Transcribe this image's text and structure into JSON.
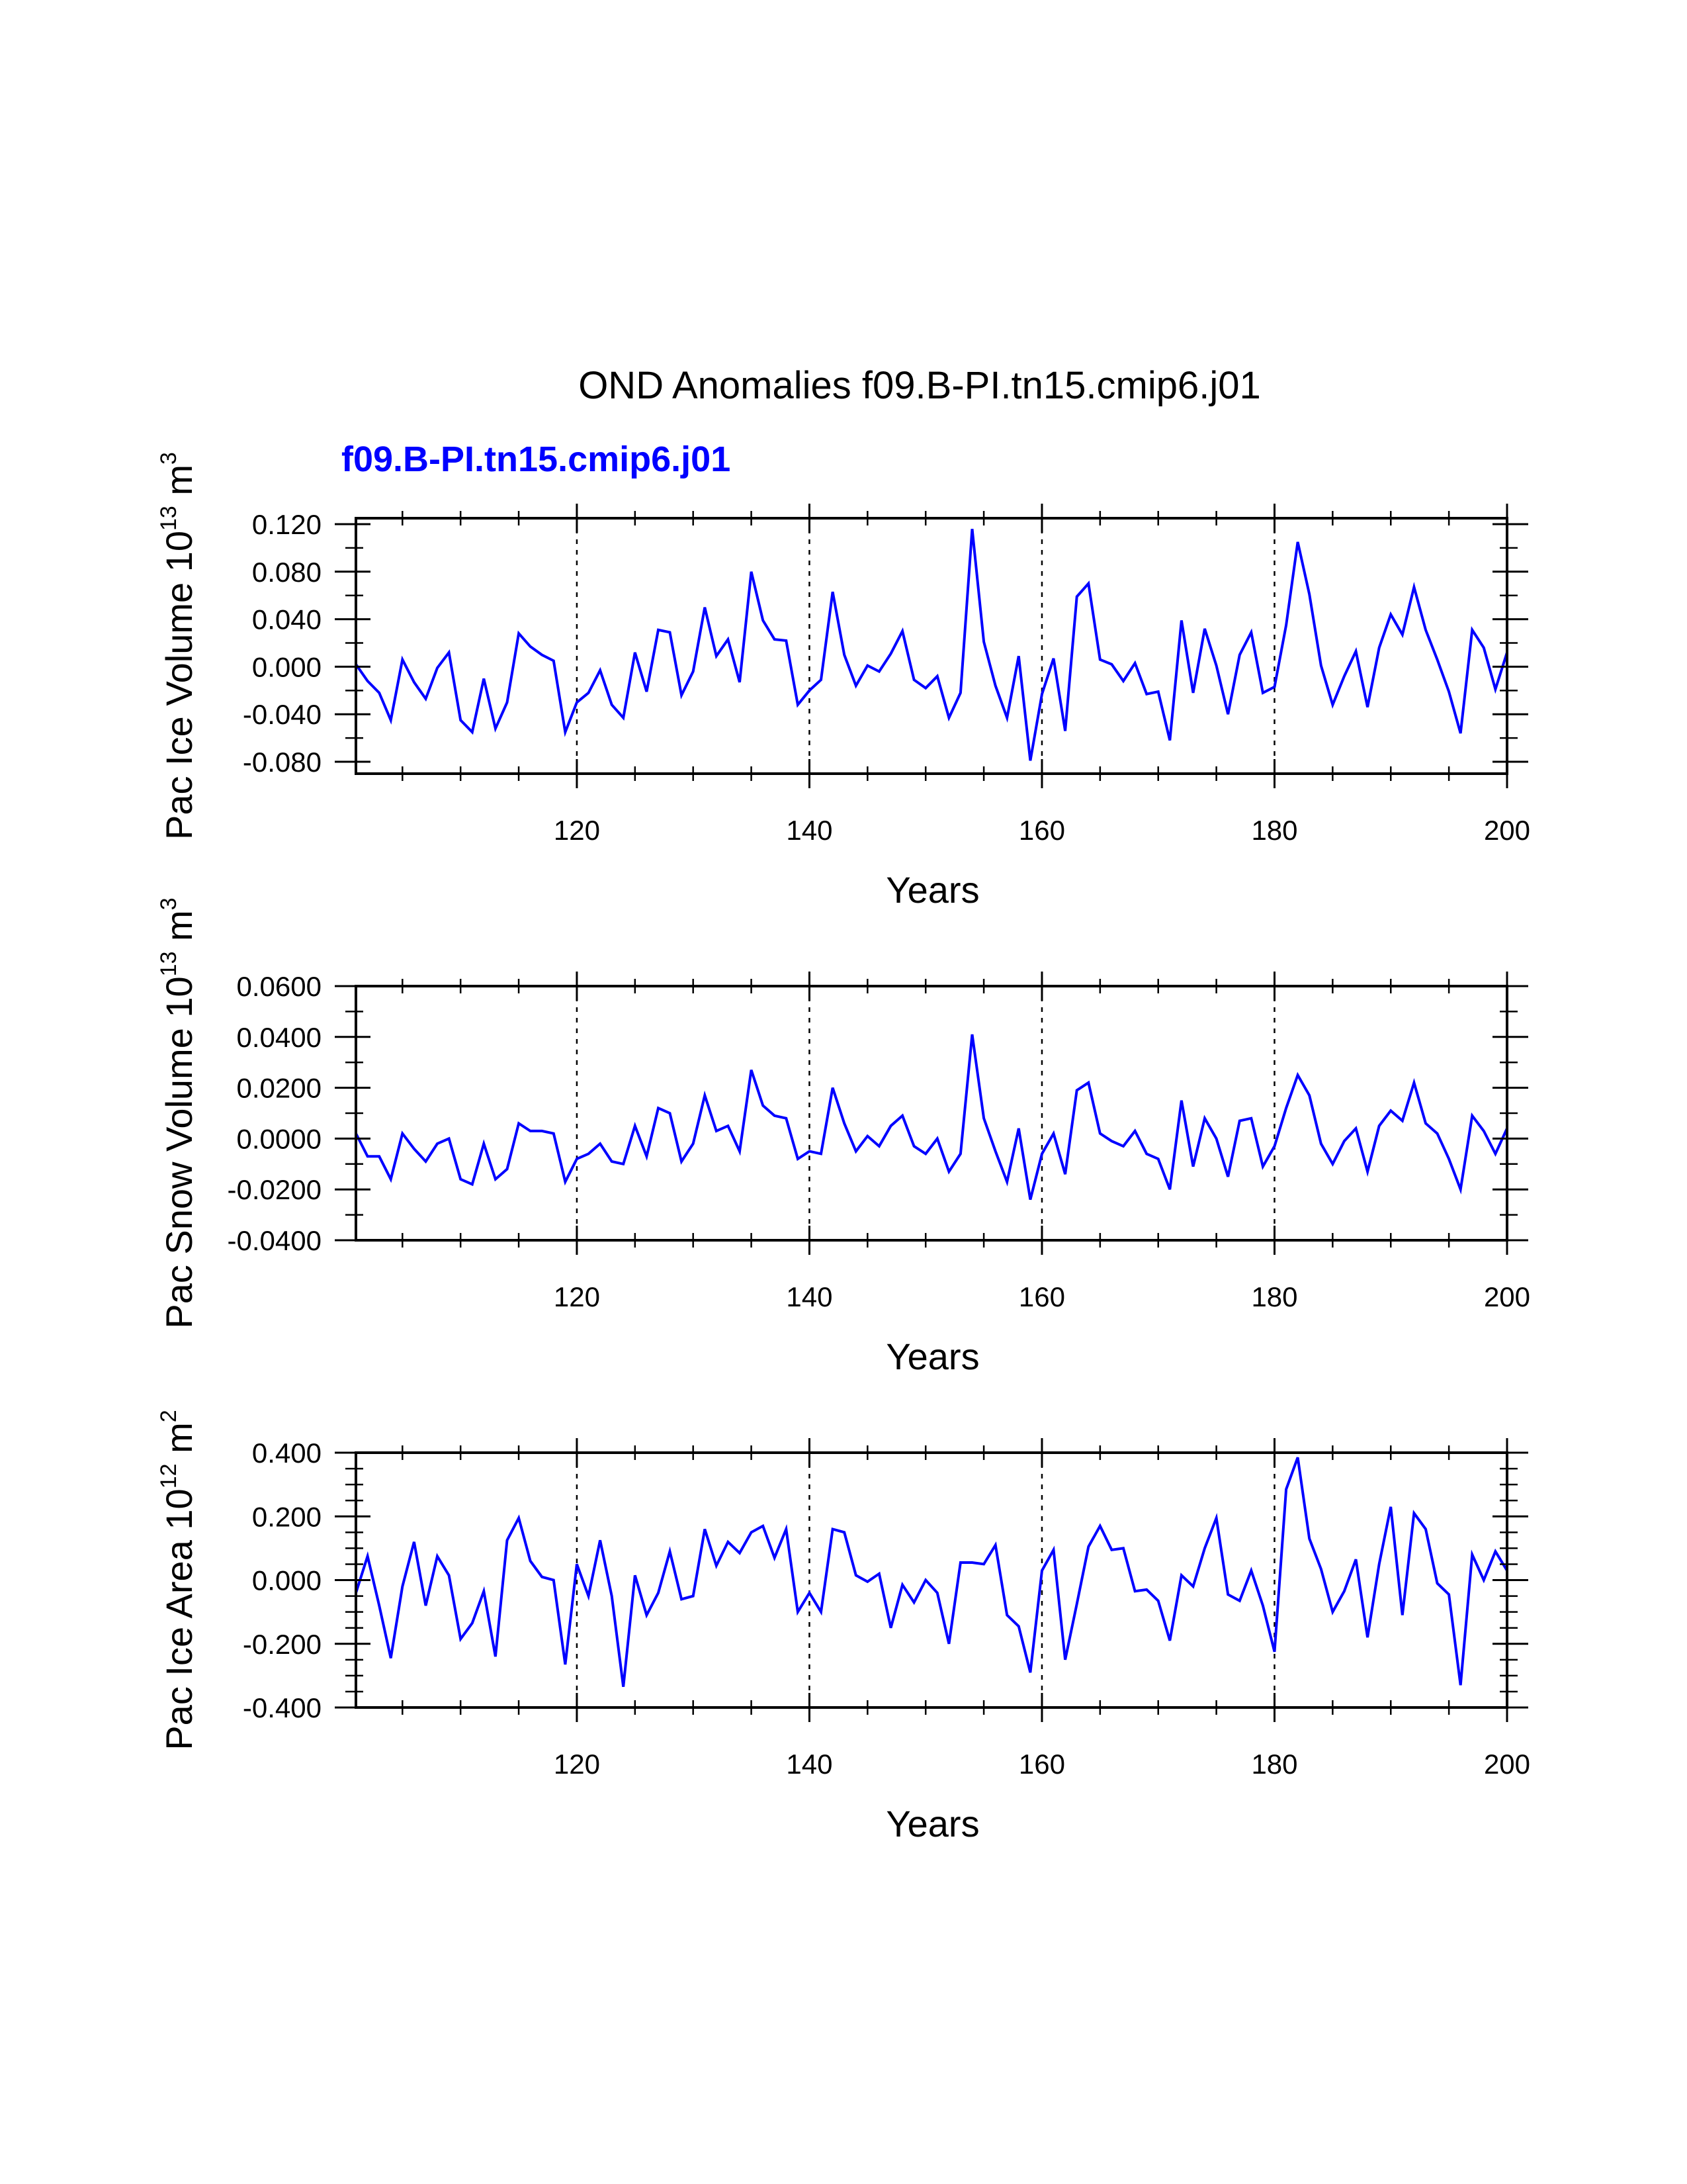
{
  "title": "OND Anomalies f09.B-PI.tn15.cmip6.j01",
  "subtitle": "f09.B-PI.tn15.cmip6.j01",
  "colors": {
    "series": "#0000ff",
    "axes": "#000000",
    "background": "#ffffff"
  },
  "chart_data": [
    {
      "type": "line",
      "ylabel": "Pac Ice Volume 10",
      "ylabel_exp": "13",
      "ylabel_unit": " m",
      "ylabel_unit_exp": "3",
      "xlabel": "Years",
      "xlim": [
        101,
        200
      ],
      "ylim": [
        -0.09,
        0.125
      ],
      "x_ticks": [
        120,
        140,
        160,
        180,
        200
      ],
      "x_tick_labels": [
        "120",
        "140",
        "160",
        "180",
        "200"
      ],
      "y_ticks": [
        -0.08,
        -0.04,
        0.0,
        0.04,
        0.08,
        0.12
      ],
      "y_tick_labels": [
        "-0.080",
        "-0.040",
        "0.000",
        "0.040",
        "0.080",
        "0.120"
      ],
      "y_minor_step": 0.02,
      "grid_x": [
        120,
        140,
        160,
        180
      ],
      "x_start": 101,
      "series": [
        {
          "name": "f09.B-PI.tn15.cmip6.j01",
          "values": [
            0.002,
            -0.012,
            -0.022,
            -0.045,
            0.006,
            -0.013,
            -0.027,
            -0.001,
            0.012,
            -0.045,
            -0.055,
            -0.01,
            -0.052,
            -0.03,
            0.028,
            0.017,
            0.01,
            0.005,
            -0.055,
            -0.03,
            -0.022,
            -0.003,
            -0.032,
            -0.043,
            0.012,
            -0.021,
            0.031,
            0.029,
            -0.024,
            -0.004,
            0.05,
            0.009,
            0.023,
            -0.013,
            0.08,
            0.039,
            0.023,
            0.022,
            -0.032,
            -0.02,
            -0.011,
            0.063,
            0.01,
            -0.016,
            0.001,
            -0.004,
            0.011,
            0.03,
            -0.011,
            -0.018,
            -0.008,
            -0.043,
            -0.022,
            0.116,
            0.021,
            -0.016,
            -0.043,
            0.009,
            -0.079,
            -0.023,
            0.007,
            -0.054,
            0.059,
            0.07,
            0.006,
            0.002,
            -0.012,
            0.003,
            -0.023,
            -0.021,
            -0.062,
            0.039,
            -0.022,
            0.032,
            0.001,
            -0.04,
            0.01,
            0.029,
            -0.022,
            -0.017,
            0.035,
            0.105,
            0.061,
            0.001,
            -0.032,
            -0.008,
            0.013,
            -0.034,
            0.016,
            0.044,
            0.027,
            0.067,
            0.031,
            0.006,
            -0.021,
            -0.056,
            0.031,
            0.016,
            -0.019,
            0.012
          ]
        }
      ]
    },
    {
      "type": "line",
      "ylabel": "Pac Snow Volume 10",
      "ylabel_exp": "13",
      "ylabel_unit": " m",
      "ylabel_unit_exp": "3",
      "xlabel": "Years",
      "xlim": [
        101,
        200
      ],
      "ylim": [
        -0.04,
        0.06
      ],
      "x_ticks": [
        120,
        140,
        160,
        180,
        200
      ],
      "x_tick_labels": [
        "120",
        "140",
        "160",
        "180",
        "200"
      ],
      "y_ticks": [
        -0.04,
        -0.02,
        0.0,
        0.02,
        0.04,
        0.06
      ],
      "y_tick_labels": [
        "-0.0400",
        "-0.0200",
        "0.0000",
        "0.0200",
        "0.0400",
        "0.0600"
      ],
      "y_minor_step": 0.01,
      "grid_x": [
        120,
        140,
        160,
        180
      ],
      "x_start": 101,
      "series": [
        {
          "name": "f09.B-PI.tn15.cmip6.j01",
          "values": [
            0.002,
            -0.007,
            -0.007,
            -0.016,
            0.002,
            -0.004,
            -0.009,
            -0.002,
            0.0,
            -0.016,
            -0.018,
            -0.002,
            -0.016,
            -0.012,
            0.006,
            0.003,
            0.003,
            0.002,
            -0.017,
            -0.008,
            -0.006,
            -0.002,
            -0.009,
            -0.01,
            0.005,
            -0.007,
            0.012,
            0.01,
            -0.009,
            -0.002,
            0.017,
            0.003,
            0.005,
            -0.005,
            0.027,
            0.013,
            0.009,
            0.008,
            -0.008,
            -0.005,
            -0.006,
            0.02,
            0.006,
            -0.005,
            0.001,
            -0.003,
            0.005,
            0.009,
            -0.003,
            -0.006,
            0.0,
            -0.013,
            -0.006,
            0.041,
            0.008,
            -0.005,
            -0.017,
            0.004,
            -0.024,
            -0.006,
            0.002,
            -0.014,
            0.019,
            0.022,
            0.002,
            -0.001,
            -0.003,
            0.003,
            -0.006,
            -0.008,
            -0.02,
            0.015,
            -0.011,
            0.008,
            0.0,
            -0.015,
            0.007,
            0.008,
            -0.011,
            -0.003,
            0.012,
            0.025,
            0.017,
            -0.002,
            -0.01,
            -0.001,
            0.004,
            -0.013,
            0.005,
            0.011,
            0.007,
            0.022,
            0.006,
            0.002,
            -0.008,
            -0.02,
            0.009,
            0.003,
            -0.006,
            0.004
          ]
        }
      ]
    },
    {
      "type": "line",
      "ylabel": "Pac Ice Area 10",
      "ylabel_exp": "12",
      "ylabel_unit": " m",
      "ylabel_unit_exp": "2",
      "xlabel": "Years",
      "xlim": [
        101,
        200
      ],
      "ylim": [
        -0.4,
        0.4
      ],
      "x_ticks": [
        120,
        140,
        160,
        180,
        200
      ],
      "x_tick_labels": [
        "120",
        "140",
        "160",
        "180",
        "200"
      ],
      "y_ticks": [
        -0.4,
        -0.2,
        0.0,
        0.2,
        0.4
      ],
      "y_tick_labels": [
        "-0.400",
        "-0.200",
        "0.000",
        "0.200",
        "0.400"
      ],
      "y_minor_step": 0.05,
      "grid_x": [
        120,
        140,
        160,
        180
      ],
      "x_start": 101,
      "series": [
        {
          "name": "f09.B-PI.tn15.cmip6.j01",
          "values": [
            -0.04,
            0.075,
            -0.08,
            -0.245,
            -0.02,
            0.12,
            -0.08,
            0.075,
            0.015,
            -0.185,
            -0.135,
            -0.035,
            -0.24,
            0.125,
            0.195,
            0.06,
            0.01,
            0.0,
            -0.265,
            0.05,
            -0.05,
            0.125,
            -0.05,
            -0.335,
            0.015,
            -0.11,
            -0.04,
            0.09,
            -0.06,
            -0.05,
            0.16,
            0.045,
            0.12,
            0.085,
            0.15,
            0.17,
            0.07,
            0.16,
            -0.1,
            -0.04,
            -0.1,
            0.16,
            0.15,
            0.015,
            -0.005,
            0.02,
            -0.15,
            -0.015,
            -0.07,
            0.0,
            -0.04,
            -0.2,
            0.055,
            0.055,
            0.05,
            0.11,
            -0.11,
            -0.145,
            -0.29,
            0.03,
            0.095,
            -0.25,
            -0.075,
            0.105,
            0.17,
            0.095,
            0.1,
            -0.035,
            -0.03,
            -0.065,
            -0.19,
            0.015,
            -0.02,
            0.1,
            0.195,
            -0.045,
            -0.065,
            0.03,
            -0.08,
            -0.225,
            0.285,
            0.385,
            0.13,
            0.035,
            -0.1,
            -0.035,
            0.065,
            -0.18,
            0.05,
            0.23,
            -0.11,
            0.21,
            0.16,
            -0.01,
            -0.045,
            -0.33,
            0.08,
            0.0,
            0.09,
            0.03
          ]
        }
      ]
    }
  ]
}
